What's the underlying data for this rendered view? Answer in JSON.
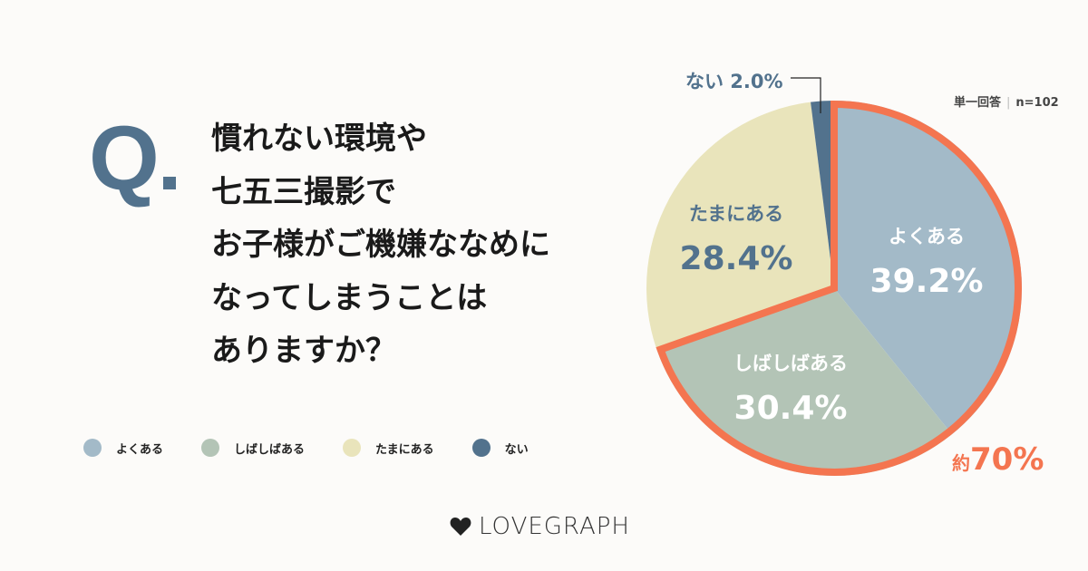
{
  "question_mark": "Q",
  "question": "慣れない環境や\n七五三撮影で\nお子様がご機嫌ななめに\nなってしまうことは\nありますか？",
  "meta": {
    "type": "単一回答",
    "n": "n=102"
  },
  "brand": "LOVEGRAPH",
  "chart_data": {
    "type": "pie",
    "categories": [
      "よくある",
      "しばしばある",
      "たまにある",
      "ない"
    ],
    "values": [
      39.2,
      30.4,
      28.4,
      2.0
    ],
    "labels": [
      "39.2%",
      "30.4%",
      "28.4%",
      "2.0%"
    ],
    "colors": [
      "#a3bac8",
      "#b3c4b6",
      "#e9e4bb",
      "#52728d"
    ],
    "legend": "bottom-left",
    "annotation": {
      "prefix": "約",
      "value": "70%",
      "color": "#f47550",
      "covers": [
        "よくある",
        "しばしばある"
      ]
    }
  }
}
